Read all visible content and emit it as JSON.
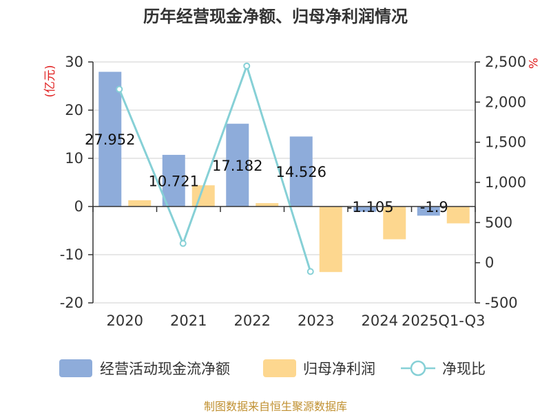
{
  "title": "历年经营现金净额、归母净利润情况",
  "source": "制图数据来自恒生聚源数据库",
  "colors": {
    "cashflow": "#8eacda",
    "profit": "#fdd78f",
    "ratio": "#86d0d6",
    "left_unit": "#e02020",
    "right_unit": "#e02020",
    "source": "#c09030"
  },
  "chart_data": {
    "type": "bar",
    "title": "历年经营现金净额、归母净利润情况",
    "categories": [
      "2020",
      "2021",
      "2022",
      "2023",
      "2024",
      "2025Q1-Q3"
    ],
    "left_axis": {
      "unit": "(亿元)",
      "ylim": [
        -20,
        30
      ],
      "ticks": [
        "30",
        "20",
        "10",
        "0",
        "-10",
        "-20"
      ]
    },
    "right_axis": {
      "unit": "%",
      "ylim": [
        -500,
        2500
      ],
      "ticks": [
        "2,500",
        "2,000",
        "1,500",
        "1,000",
        "500",
        "0",
        "-500"
      ]
    },
    "series": [
      {
        "name": "经营活动现金流净额",
        "type": "bar",
        "axis": "left",
        "values": [
          27.952,
          10.721,
          17.182,
          14.526,
          -1.105,
          -1.9
        ],
        "labels": [
          "27.952",
          "10.721",
          "17.182",
          "14.526",
          "-1.105",
          "-1.9"
        ]
      },
      {
        "name": "归母净利润",
        "type": "bar",
        "axis": "left",
        "values": [
          1.3,
          4.4,
          0.7,
          -13.6,
          -6.8,
          -3.5
        ]
      },
      {
        "name": "净现比",
        "type": "line",
        "axis": "right",
        "values": [
          2160,
          240,
          2450,
          -110,
          null,
          null
        ]
      }
    ],
    "legend_position": "bottom",
    "grid": true
  }
}
